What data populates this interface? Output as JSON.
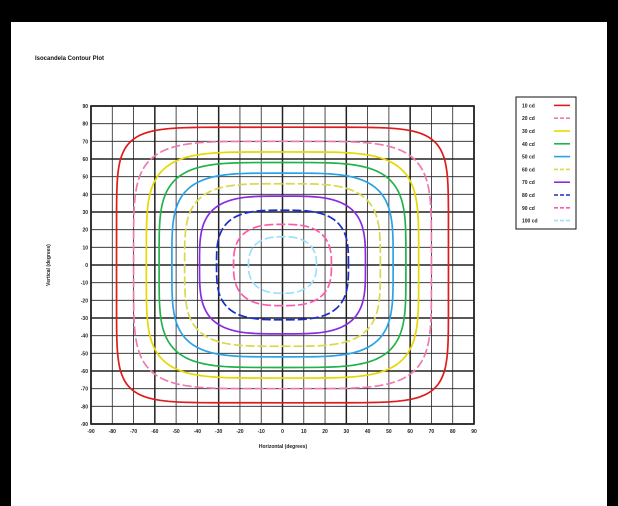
{
  "chart_data": {
    "type": "line",
    "subtype": "contour",
    "title": "Isocandela Contour Plot",
    "xlabel": "Horizontal (degrees)",
    "ylabel": "Vertical (degrees)",
    "xlim": [
      -90,
      90
    ],
    "ylim": [
      -90,
      90
    ],
    "x_ticks": [
      "-90",
      "-80",
      "-70",
      "-60",
      "-50",
      "-40",
      "-30",
      "-20",
      "-10",
      "0",
      "10",
      "20",
      "30",
      "40",
      "50",
      "60",
      "70",
      "80",
      "90"
    ],
    "y_ticks": [
      "90",
      "80",
      "70",
      "60",
      "50",
      "40",
      "30",
      "20",
      "10",
      "0",
      "-10",
      "-20",
      "-30",
      "-40",
      "-50",
      "-60",
      "-70",
      "-80",
      "-90"
    ],
    "grid": true,
    "legend_position": "right",
    "series": [
      {
        "name": "10 cd",
        "color": "#e01b1b",
        "dash": false,
        "halfwidth": 78,
        "exponent": 7
      },
      {
        "name": "20 cd",
        "color": "#f07ab0",
        "dash": true,
        "halfwidth": 70,
        "exponent": 5
      },
      {
        "name": "30 cd",
        "color": "#e6d800",
        "dash": false,
        "halfwidth": 64,
        "exponent": 4.6
      },
      {
        "name": "40 cd",
        "color": "#22b24c",
        "dash": false,
        "halfwidth": 58,
        "exponent": 4.3
      },
      {
        "name": "50 cd",
        "color": "#2aa2e8",
        "dash": false,
        "halfwidth": 52,
        "exponent": 4
      },
      {
        "name": "60 cd",
        "color": "#d9d94a",
        "dash": true,
        "halfwidth": 46,
        "exponent": 3.8
      },
      {
        "name": "70 cd",
        "color": "#8a2be2",
        "dash": false,
        "halfwidth": 39,
        "exponent": 3.5
      },
      {
        "name": "80 cd",
        "color": "#1c2cc8",
        "dash": true,
        "halfwidth": 31,
        "exponent": 3.2
      },
      {
        "name": "90 cd",
        "color": "#ff5aa8",
        "dash": true,
        "halfwidth": 23,
        "exponent": 2.8
      },
      {
        "name": "100 cd",
        "color": "#9be0ff",
        "dash": true,
        "halfwidth": 16,
        "exponent": 2.5
      }
    ]
  }
}
